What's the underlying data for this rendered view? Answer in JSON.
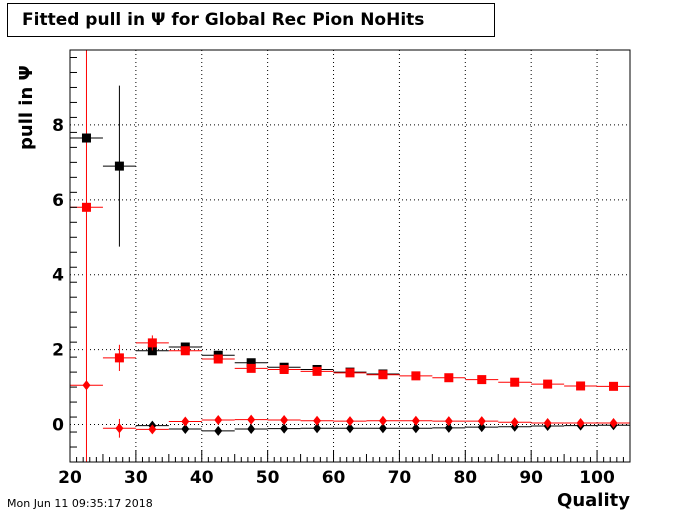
{
  "page": {
    "timestamp": "Mon Jun 11 09:35:17 2018"
  },
  "chart_data": {
    "type": "scatter",
    "title": "Fitted pull in  Ψ  for Global Rec Pion NoHits",
    "xlabel": "Quality",
    "ylabel": "pull in  Ψ",
    "xlim": [
      20,
      105
    ],
    "ylim": [
      -1,
      10
    ],
    "xticks": [
      20,
      30,
      40,
      50,
      60,
      70,
      80,
      90,
      100
    ],
    "yticks": [
      0,
      2,
      4,
      6,
      8
    ],
    "grid": true,
    "reference_line": {
      "x": 22.5,
      "color": "#ff0000"
    },
    "colors": {
      "black": "#000000",
      "red": "#ff0000"
    },
    "series": [
      {
        "marker": "square",
        "color": "#000000",
        "points": [
          {
            "x": 22.5,
            "y": 7.65,
            "xerr": 2.5,
            "yerr": 0.0
          },
          {
            "x": 27.5,
            "y": 6.9,
            "xerr": 2.5,
            "yerr": 2.15
          },
          {
            "x": 32.5,
            "y": 1.97,
            "xerr": 2.5,
            "yerr": 0.1
          },
          {
            "x": 37.5,
            "y": 2.07,
            "xerr": 2.5,
            "yerr": 0.06
          },
          {
            "x": 42.5,
            "y": 1.85,
            "xerr": 2.5,
            "yerr": 0.04
          },
          {
            "x": 47.5,
            "y": 1.65,
            "xerr": 2.5,
            "yerr": 0.03
          },
          {
            "x": 52.5,
            "y": 1.53,
            "xerr": 2.5,
            "yerr": 0.03
          },
          {
            "x": 57.5,
            "y": 1.47,
            "xerr": 2.5,
            "yerr": 0.03
          },
          {
            "x": 62.5,
            "y": 1.4,
            "xerr": 2.5,
            "yerr": 0.03
          },
          {
            "x": 67.5,
            "y": 1.35,
            "xerr": 2.5,
            "yerr": 0.02
          }
        ]
      },
      {
        "marker": "square",
        "color": "#ff0000",
        "points": [
          {
            "x": 22.5,
            "y": 5.8,
            "xerr": 2.5,
            "yerr": 0.0
          },
          {
            "x": 27.5,
            "y": 1.78,
            "xerr": 2.5,
            "yerr": 0.35
          },
          {
            "x": 32.5,
            "y": 2.18,
            "xerr": 2.5,
            "yerr": 0.2
          },
          {
            "x": 37.5,
            "y": 1.97,
            "xerr": 2.5,
            "yerr": 0.08
          },
          {
            "x": 42.5,
            "y": 1.75,
            "xerr": 2.5,
            "yerr": 0.05
          },
          {
            "x": 47.5,
            "y": 1.5,
            "xerr": 2.5,
            "yerr": 0.04
          },
          {
            "x": 52.5,
            "y": 1.47,
            "xerr": 2.5,
            "yerr": 0.03
          },
          {
            "x": 57.5,
            "y": 1.42,
            "xerr": 2.5,
            "yerr": 0.03
          },
          {
            "x": 62.5,
            "y": 1.38,
            "xerr": 2.5,
            "yerr": 0.03
          },
          {
            "x": 67.5,
            "y": 1.33,
            "xerr": 2.5,
            "yerr": 0.02
          },
          {
            "x": 72.5,
            "y": 1.3,
            "xerr": 2.5,
            "yerr": 0.02
          },
          {
            "x": 77.5,
            "y": 1.25,
            "xerr": 2.5,
            "yerr": 0.02
          },
          {
            "x": 82.5,
            "y": 1.2,
            "xerr": 2.5,
            "yerr": 0.02
          },
          {
            "x": 87.5,
            "y": 1.13,
            "xerr": 2.5,
            "yerr": 0.02
          },
          {
            "x": 92.5,
            "y": 1.08,
            "xerr": 2.5,
            "yerr": 0.02
          },
          {
            "x": 97.5,
            "y": 1.03,
            "xerr": 2.5,
            "yerr": 0.02
          },
          {
            "x": 102.5,
            "y": 1.02,
            "xerr": 2.5,
            "yerr": 0.02
          }
        ]
      },
      {
        "marker": "diamond",
        "color": "#000000",
        "points": [
          {
            "x": 32.5,
            "y": -0.03,
            "xerr": 2.5,
            "yerr": 0.05
          },
          {
            "x": 37.5,
            "y": -0.12,
            "xerr": 2.5,
            "yerr": 0.03
          },
          {
            "x": 42.5,
            "y": -0.17,
            "xerr": 2.5,
            "yerr": 0.02
          },
          {
            "x": 47.5,
            "y": -0.12,
            "xerr": 2.5,
            "yerr": 0.02
          },
          {
            "x": 52.5,
            "y": -0.11,
            "xerr": 2.5,
            "yerr": 0.02
          },
          {
            "x": 57.5,
            "y": -0.1,
            "xerr": 2.5,
            "yerr": 0.02
          },
          {
            "x": 62.5,
            "y": -0.1,
            "xerr": 2.5,
            "yerr": 0.02
          },
          {
            "x": 67.5,
            "y": -0.1,
            "xerr": 2.5,
            "yerr": 0.02
          },
          {
            "x": 72.5,
            "y": -0.1,
            "xerr": 2.5,
            "yerr": 0.02
          },
          {
            "x": 77.5,
            "y": -0.09,
            "xerr": 2.5,
            "yerr": 0.02
          },
          {
            "x": 82.5,
            "y": -0.07,
            "xerr": 2.5,
            "yerr": 0.02
          },
          {
            "x": 87.5,
            "y": -0.06,
            "xerr": 2.5,
            "yerr": 0.02
          },
          {
            "x": 92.5,
            "y": -0.04,
            "xerr": 2.5,
            "yerr": 0.02
          },
          {
            "x": 97.5,
            "y": -0.03,
            "xerr": 2.5,
            "yerr": 0.02
          },
          {
            "x": 102.5,
            "y": -0.02,
            "xerr": 2.5,
            "yerr": 0.02
          }
        ]
      },
      {
        "marker": "diamond",
        "color": "#ff0000",
        "points": [
          {
            "x": 22.5,
            "y": 1.05,
            "xerr": 2.5,
            "yerr": 0.0
          },
          {
            "x": 27.5,
            "y": -0.1,
            "xerr": 2.5,
            "yerr": 0.25
          },
          {
            "x": 32.5,
            "y": -0.13,
            "xerr": 2.5,
            "yerr": 0.1
          },
          {
            "x": 37.5,
            "y": 0.08,
            "xerr": 2.5,
            "yerr": 0.05
          },
          {
            "x": 42.5,
            "y": 0.12,
            "xerr": 2.5,
            "yerr": 0.03
          },
          {
            "x": 47.5,
            "y": 0.13,
            "xerr": 2.5,
            "yerr": 0.03
          },
          {
            "x": 52.5,
            "y": 0.12,
            "xerr": 2.5,
            "yerr": 0.02
          },
          {
            "x": 57.5,
            "y": 0.1,
            "xerr": 2.5,
            "yerr": 0.02
          },
          {
            "x": 62.5,
            "y": 0.09,
            "xerr": 2.5,
            "yerr": 0.02
          },
          {
            "x": 67.5,
            "y": 0.1,
            "xerr": 2.5,
            "yerr": 0.02
          },
          {
            "x": 72.5,
            "y": 0.1,
            "xerr": 2.5,
            "yerr": 0.02
          },
          {
            "x": 77.5,
            "y": 0.09,
            "xerr": 2.5,
            "yerr": 0.02
          },
          {
            "x": 82.5,
            "y": 0.09,
            "xerr": 2.5,
            "yerr": 0.02
          },
          {
            "x": 87.5,
            "y": 0.06,
            "xerr": 2.5,
            "yerr": 0.02
          },
          {
            "x": 92.5,
            "y": 0.04,
            "xerr": 2.5,
            "yerr": 0.02
          },
          {
            "x": 97.5,
            "y": 0.04,
            "xerr": 2.5,
            "yerr": 0.02
          },
          {
            "x": 102.5,
            "y": 0.04,
            "xerr": 2.5,
            "yerr": 0.02
          }
        ]
      }
    ]
  }
}
